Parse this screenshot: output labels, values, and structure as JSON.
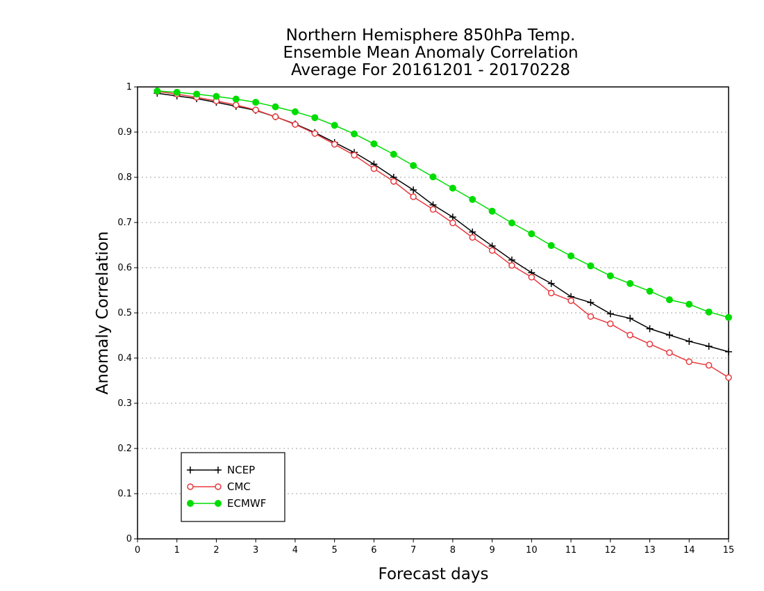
{
  "chart_data": {
    "type": "line",
    "title": [
      "Northern Hemisphere 850hPa Temp.",
      "Ensemble Mean Anomaly Correlation",
      "Average For 20161201 - 20170228"
    ],
    "xlabel": "Forecast days",
    "ylabel": "Anomaly Correlation",
    "xlim": [
      0,
      15
    ],
    "ylim": [
      0,
      1
    ],
    "xticks": [
      0,
      1,
      2,
      3,
      4,
      5,
      6,
      7,
      8,
      9,
      10,
      11,
      12,
      13,
      14,
      15
    ],
    "yticks": [
      0,
      0.1,
      0.2,
      0.3,
      0.4,
      0.5,
      0.6,
      0.7,
      0.8,
      0.9,
      1
    ],
    "ytick_labels": [
      "0",
      "0.1",
      "0.2",
      "0.3",
      "0.4",
      "0.5",
      "0.6",
      "0.7",
      "0.8",
      "0.9",
      "1"
    ],
    "grid": "horizontal dotted",
    "legend": "bottom-left",
    "x": [
      0.5,
      1,
      1.5,
      2,
      2.5,
      3,
      3.5,
      4,
      4.5,
      5,
      5.5,
      6,
      6.5,
      7,
      7.5,
      8,
      8.5,
      9,
      9.5,
      10,
      10.5,
      11,
      11.5,
      12,
      12.5,
      13,
      13.5,
      14,
      14.5,
      15
    ],
    "series": [
      {
        "name": "NCEP",
        "color": "#000000",
        "marker": "plus",
        "values": [
          0.986,
          0.98,
          0.974,
          0.966,
          0.957,
          0.948,
          0.934,
          0.918,
          0.899,
          0.877,
          0.855,
          0.829,
          0.8,
          0.772,
          0.739,
          0.712,
          0.679,
          0.648,
          0.617,
          0.589,
          0.565,
          0.536,
          0.523,
          0.498,
          0.488,
          0.465,
          0.451,
          0.437,
          0.426,
          0.414
        ]
      },
      {
        "name": "CMC",
        "color": "#e8383d",
        "marker": "open-circle",
        "values": [
          0.99,
          0.984,
          0.977,
          0.969,
          0.96,
          0.949,
          0.934,
          0.917,
          0.897,
          0.873,
          0.849,
          0.819,
          0.791,
          0.757,
          0.729,
          0.699,
          0.667,
          0.638,
          0.605,
          0.579,
          0.544,
          0.527,
          0.492,
          0.476,
          0.451,
          0.431,
          0.412,
          0.392,
          0.384,
          0.357
        ]
      },
      {
        "name": "ECMWF",
        "color": "#00dc00",
        "marker": "filled-circle",
        "values": [
          0.991,
          0.988,
          0.984,
          0.979,
          0.973,
          0.966,
          0.956,
          0.945,
          0.932,
          0.915,
          0.896,
          0.874,
          0.851,
          0.826,
          0.801,
          0.776,
          0.751,
          0.725,
          0.699,
          0.675,
          0.649,
          0.626,
          0.604,
          0.582,
          0.565,
          0.548,
          0.529,
          0.519,
          0.502,
          0.49
        ]
      }
    ]
  }
}
